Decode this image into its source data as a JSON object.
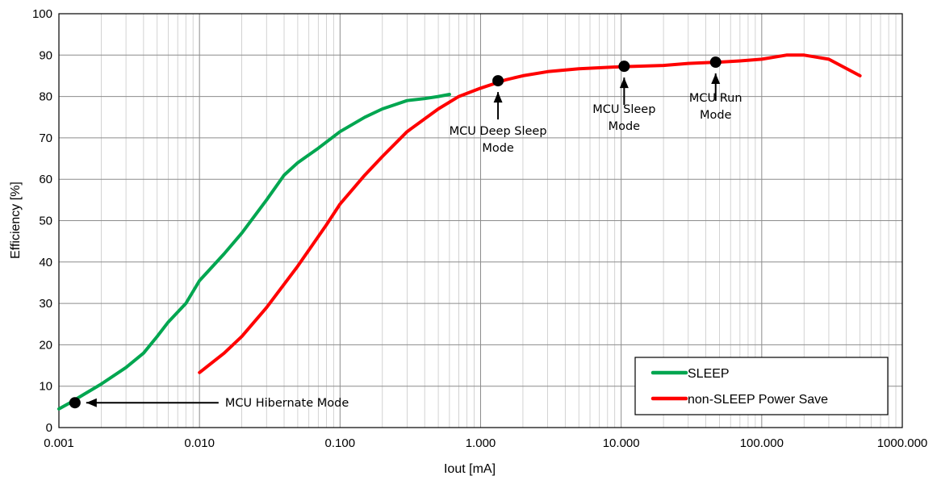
{
  "chart_data": {
    "type": "line",
    "title": "",
    "xlabel": "Iout [mA]",
    "ylabel": "Efficiency [%]",
    "x_scale": "log",
    "xlim": [
      0.001,
      1000
    ],
    "ylim": [
      0,
      100
    ],
    "grid": true,
    "legend_position": "bottom-right",
    "x_tick_labels": [
      "0.001",
      "0.010",
      "0.100",
      "1.000",
      "10.000",
      "100.000",
      "1000.000"
    ],
    "y_tick_labels": [
      "0",
      "10",
      "20",
      "30",
      "40",
      "50",
      "60",
      "70",
      "80",
      "90",
      "100"
    ],
    "series": [
      {
        "name": "SLEEP",
        "color": "#00a650",
        "points": [
          [
            0.001,
            4.5
          ],
          [
            0.0012,
            6
          ],
          [
            0.0015,
            8
          ],
          [
            0.002,
            10.5
          ],
          [
            0.003,
            14.5
          ],
          [
            0.004,
            18
          ],
          [
            0.005,
            22
          ],
          [
            0.006,
            25.5
          ],
          [
            0.008,
            30
          ],
          [
            0.01,
            35.5
          ],
          [
            0.015,
            42
          ],
          [
            0.02,
            47
          ],
          [
            0.03,
            55
          ],
          [
            0.04,
            61
          ],
          [
            0.05,
            64
          ],
          [
            0.07,
            67.5
          ],
          [
            0.1,
            71.5
          ],
          [
            0.15,
            75
          ],
          [
            0.2,
            77
          ],
          [
            0.3,
            79
          ],
          [
            0.4,
            79.5
          ],
          [
            0.5,
            80
          ],
          [
            0.6,
            80.5
          ]
        ]
      },
      {
        "name": "non-SLEEP Power Save",
        "color": "#ff0000",
        "points": [
          [
            0.01,
            13.3
          ],
          [
            0.015,
            18
          ],
          [
            0.02,
            22
          ],
          [
            0.03,
            29
          ],
          [
            0.05,
            39
          ],
          [
            0.08,
            49
          ],
          [
            0.1,
            54
          ],
          [
            0.15,
            61
          ],
          [
            0.2,
            65.5
          ],
          [
            0.3,
            71.5
          ],
          [
            0.5,
            77
          ],
          [
            0.7,
            80
          ],
          [
            1.0,
            82
          ],
          [
            1.5,
            84
          ],
          [
            2,
            85
          ],
          [
            3,
            86
          ],
          [
            5,
            86.7
          ],
          [
            10,
            87.2
          ],
          [
            20,
            87.5
          ],
          [
            30,
            88
          ],
          [
            50,
            88.3
          ],
          [
            70,
            88.6
          ],
          [
            100,
            89
          ],
          [
            150,
            90
          ],
          [
            200,
            90
          ],
          [
            300,
            89
          ],
          [
            500,
            85
          ]
        ]
      }
    ],
    "markers": [
      {
        "x": 0.0013,
        "y": 6
      },
      {
        "x": 1.33,
        "y": 83.8
      },
      {
        "x": 10.5,
        "y": 87.3
      },
      {
        "x": 47,
        "y": 88.3
      }
    ],
    "annotations": [
      {
        "lines": [
          "MCU Hibernate Mode"
        ]
      },
      {
        "lines": [
          "MCU Deep Sleep",
          "Mode"
        ]
      },
      {
        "lines": [
          "MCU Sleep",
          "Mode"
        ]
      },
      {
        "lines": [
          "MCU Run",
          "Mode"
        ]
      }
    ]
  }
}
